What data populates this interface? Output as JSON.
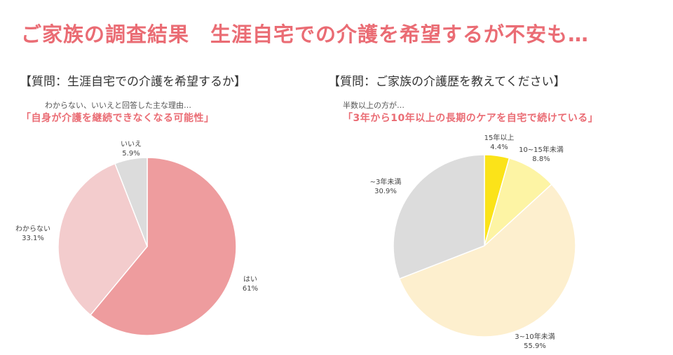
{
  "page": {
    "title": "ご家族の調査結果　生涯自宅での介護を希望するが不安も…",
    "title_color": "#ea6c74",
    "accent_color": "#ea6c74"
  },
  "chart_data": [
    {
      "type": "pie",
      "title": "【質問：生涯自宅での介護を希望するか】",
      "note": "わからない、いいえと回答した主な理由…",
      "highlight": "「自身が介護を継続できなくなる可能性」",
      "slices": [
        {
          "label": "はい",
          "value": 61,
          "value_text": "61%",
          "color": "#ee9c9e"
        },
        {
          "label": "わからない",
          "value": 33.1,
          "value_text": "33.1%",
          "color": "#f3cccd"
        },
        {
          "label": "いいえ",
          "value": 5.9,
          "value_text": "5.9%",
          "color": "#dcdcdc"
        }
      ],
      "start": "12 o'clock",
      "direction": "clockwise"
    },
    {
      "type": "pie",
      "title": "【質問：ご家族の介護歴を教えてください】",
      "note": "半数以上の方が…",
      "highlight": "「3年から10年以上の長期のケアを自宅で続けている」",
      "slices": [
        {
          "label": "15年以上",
          "value": 4.4,
          "value_text": "4.4%",
          "color": "#fbe319"
        },
        {
          "label": "10~15年未満",
          "value": 8.8,
          "value_text": "8.8%",
          "color": "#fdf4a4"
        },
        {
          "label": "3~10年未満",
          "value": 55.9,
          "value_text": "55.9%",
          "color": "#fdefce"
        },
        {
          "label": "~3年未満",
          "value": 30.9,
          "value_text": "30.9%",
          "color": "#dcdcdc"
        }
      ],
      "start": "12 o'clock",
      "direction": "clockwise"
    }
  ]
}
